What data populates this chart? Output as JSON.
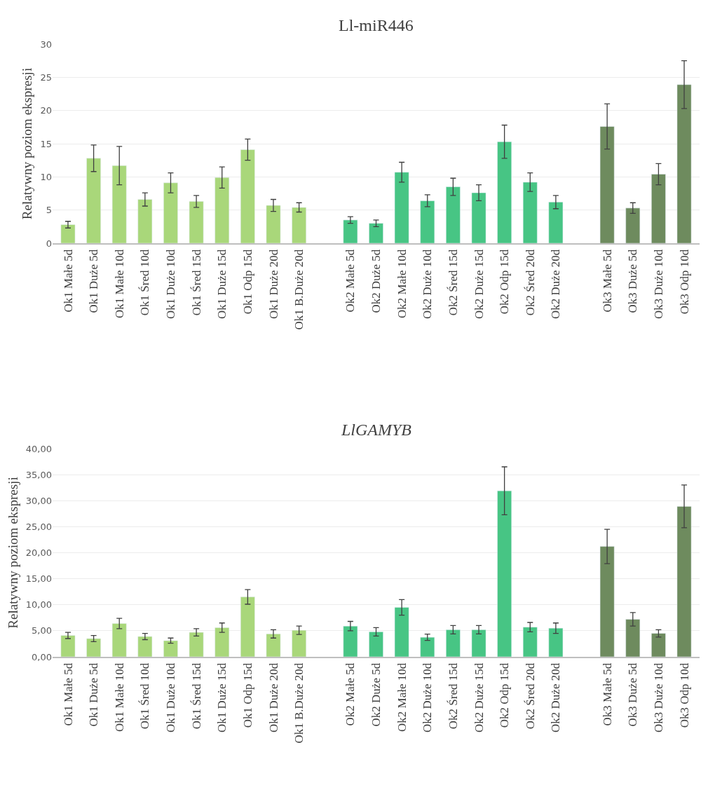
{
  "chart_data": [
    {
      "type": "bar",
      "title": "Ll-miR446",
      "ylabel": "Relatywny poziom ekspresji",
      "categories": [
        "Ok1 Małe 5d",
        "Ok1 Duże 5d",
        "Ok1 Małe 10d",
        "Ok1 Śred 10d",
        "Ok1 Duże 10d",
        "Ok1 Śred 15d",
        "Ok1 Duże 15d",
        "Ok1 Odp 15d",
        "Ok1 Duże 20d",
        "Ok1 B.Duże 20d",
        null,
        "Ok2 Małe 5d",
        "Ok2 Duże 5d",
        "Ok2 Małe 10d",
        "Ok2 Duże 10d",
        "Ok2 Śred 15d",
        "Ok2 Duże 15d",
        "Ok2 Odp 15d",
        "Ok2 Śred 20d",
        "Ok2 Duże 20d",
        null,
        "Ok3 Małe 5d",
        "Ok3 Duże 5d",
        "Ok3 Duże 10d",
        "Ok3 Odp 10d"
      ],
      "values": [
        2.8,
        12.8,
        11.7,
        6.6,
        9.1,
        6.3,
        9.9,
        14.1,
        5.7,
        5.4,
        null,
        3.5,
        3.0,
        10.7,
        6.4,
        8.5,
        7.6,
        15.3,
        9.2,
        6.2,
        null,
        17.6,
        5.3,
        10.4,
        23.9
      ],
      "errors": [
        0.5,
        2.0,
        2.9,
        1.0,
        1.5,
        0.9,
        1.6,
        1.6,
        0.9,
        0.7,
        null,
        0.5,
        0.5,
        1.5,
        0.9,
        1.3,
        1.2,
        2.5,
        1.4,
        1.0,
        null,
        3.4,
        0.8,
        1.6,
        3.6
      ],
      "colors": [
        "#a9d77a",
        "#a9d77a",
        "#a9d77a",
        "#a9d77a",
        "#a9d77a",
        "#a9d77a",
        "#a9d77a",
        "#a9d77a",
        "#a9d77a",
        "#a9d77a",
        null,
        "#47c584",
        "#47c584",
        "#47c584",
        "#47c584",
        "#47c584",
        "#47c584",
        "#47c584",
        "#47c584",
        "#47c584",
        null,
        "#6e8b5e",
        "#6e8b5e",
        "#6e8b5e",
        "#6e8b5e"
      ],
      "ylim": [
        0,
        30
      ],
      "yticks": [
        0,
        5,
        10,
        15,
        20,
        25,
        30
      ],
      "grid": "y"
    },
    {
      "type": "bar",
      "title": "LlGAMYB",
      "ylabel": "Relatywny poziom ekspresji",
      "categories": [
        "Ok1 Małe 5d",
        "Ok1 Duże 5d",
        "Ok1 Małe 10d",
        "Ok1 Śred 10d",
        "Ok1 Duże 10d",
        "Ok1 Śred 15d",
        "Ok1 Duże 15d",
        "Ok1 Odp 15d",
        "Ok1 Duże 20d",
        "Ok1 B.Duże 20d",
        null,
        "Ok2 Małe 5d",
        "Ok2 Duże 5d",
        "Ok2 Małe 10d",
        "Ok2 Duże 10d",
        "Ok2 Śred 15d",
        "Ok2 Duże 15d",
        "Ok2 Odp 15d",
        "Ok2 Śred 20d",
        "Ok2 Duże 20d",
        null,
        "Ok3 Małe 5d",
        "Ok3 Duże 5d",
        "Ok3 Duże 10d",
        "Ok3 Odp 10d"
      ],
      "values": [
        4.1,
        3.5,
        6.4,
        3.9,
        3.1,
        4.7,
        5.6,
        11.5,
        4.4,
        5.1,
        null,
        5.9,
        4.8,
        9.5,
        3.75,
        5.2,
        5.2,
        31.9,
        5.7,
        5.5,
        null,
        21.2,
        7.2,
        4.5,
        28.9
      ],
      "errors": [
        0.6,
        0.6,
        1.0,
        0.6,
        0.5,
        0.7,
        0.9,
        1.4,
        0.8,
        0.8,
        null,
        0.9,
        0.8,
        1.5,
        0.6,
        0.8,
        0.8,
        4.6,
        0.9,
        1.0,
        null,
        3.3,
        1.3,
        0.7,
        4.1
      ],
      "colors": [
        "#a9d77a",
        "#a9d77a",
        "#a9d77a",
        "#a9d77a",
        "#a9d77a",
        "#a9d77a",
        "#a9d77a",
        "#a9d77a",
        "#a9d77a",
        "#a9d77a",
        null,
        "#47c584",
        "#47c584",
        "#47c584",
        "#47c584",
        "#47c584",
        "#47c584",
        "#47c584",
        "#47c584",
        "#47c584",
        null,
        "#6e8b5e",
        "#6e8b5e",
        "#6e8b5e",
        "#6e8b5e"
      ],
      "ylim": [
        0,
        40
      ],
      "yticks": [
        {
          "value": 0,
          "label": "0,00"
        },
        {
          "value": 5,
          "label": "5,00"
        },
        {
          "value": 10,
          "label": "10,00"
        },
        {
          "value": 15,
          "label": "15,00"
        },
        {
          "value": 20,
          "label": "20,00"
        },
        {
          "value": 25,
          "label": "25,00"
        },
        {
          "value": 30,
          "label": "30,00"
        },
        {
          "value": 35,
          "label": "35,00"
        },
        {
          "value": 40,
          "label": "40,00"
        }
      ],
      "grid": "y"
    }
  ]
}
